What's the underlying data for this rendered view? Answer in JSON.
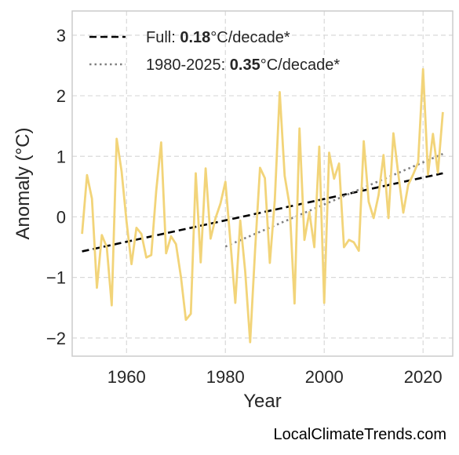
{
  "chart_data": {
    "type": "line",
    "xlabel": "Year",
    "ylabel": "Anomaly (°C)",
    "xlim": [
      1949,
      2026
    ],
    "ylim": [
      -2.3,
      3.4
    ],
    "xticks": [
      1960,
      1980,
      2000,
      2020
    ],
    "yticks": [
      -2,
      -1,
      0,
      1,
      2,
      3
    ],
    "ytick_labels": [
      "−2",
      "−1",
      "0",
      "1",
      "2",
      "3"
    ],
    "grid": true,
    "legend_position": "top-left",
    "colors": {
      "series": "#f2d479",
      "trend_full": "#000000",
      "trend_recent": "#808080",
      "grid": "#d9d9d9",
      "frame": "#cccccc"
    },
    "series": [
      {
        "x": [
          1951,
          1952,
          1953,
          1954,
          1955,
          1956,
          1957,
          1958,
          1959,
          1960,
          1961,
          1962,
          1963,
          1964,
          1965,
          1966,
          1967,
          1968,
          1969,
          1970,
          1971,
          1972,
          1973,
          1974,
          1975,
          1976,
          1977,
          1978,
          1979,
          1980,
          1981,
          1982,
          1983,
          1984,
          1985,
          1986,
          1987,
          1988,
          1989,
          1990,
          1991,
          1992,
          1993,
          1994,
          1995,
          1996,
          1997,
          1998,
          1999,
          2000,
          2001,
          2002,
          2003,
          2004,
          2005,
          2006,
          2007,
          2008,
          2009,
          2010,
          2011,
          2012,
          2013,
          2014,
          2015,
          2016,
          2017,
          2018,
          2019,
          2020,
          2021,
          2022,
          2023,
          2024
        ],
        "y": [
          -0.28,
          0.69,
          0.3,
          -1.17,
          -0.3,
          -0.5,
          -1.46,
          1.29,
          0.75,
          -0.08,
          -0.78,
          -0.18,
          -0.28,
          -0.67,
          -0.63,
          0.43,
          1.23,
          -0.6,
          -0.32,
          -0.45,
          -0.99,
          -1.7,
          -1.6,
          0.72,
          -0.75,
          0.8,
          -0.36,
          -0.02,
          0.22,
          0.58,
          -0.4,
          -1.42,
          -0.06,
          -0.9,
          -2.07,
          -0.55,
          0.81,
          0.64,
          -0.76,
          0.27,
          2.06,
          0.68,
          0.19,
          -1.43,
          1.46,
          -0.38,
          0.08,
          -0.5,
          1.16,
          -1.42,
          1.06,
          0.63,
          0.88,
          -0.5,
          -0.38,
          -0.42,
          -0.56,
          1.25,
          0.25,
          -0.02,
          0.36,
          1.02,
          -0.02,
          1.38,
          0.7,
          0.07,
          0.53,
          0.7,
          0.9,
          2.44,
          0.7,
          1.37,
          0.73,
          1.73
        ]
      }
    ],
    "trends": [
      {
        "label_prefix": "Full: ",
        "label_value": "0.18",
        "label_suffix": "°C/decade*",
        "style": "dashed",
        "x": [
          1951,
          2024
        ],
        "y": [
          -0.57,
          0.72
        ]
      },
      {
        "label_prefix": "1980-2025: ",
        "label_value": "0.35",
        "label_suffix": "°C/decade*",
        "style": "dotted",
        "x": [
          1980,
          2024
        ],
        "y": [
          -0.49,
          1.04
        ]
      }
    ]
  },
  "watermark": "LocalClimateTrends.com"
}
